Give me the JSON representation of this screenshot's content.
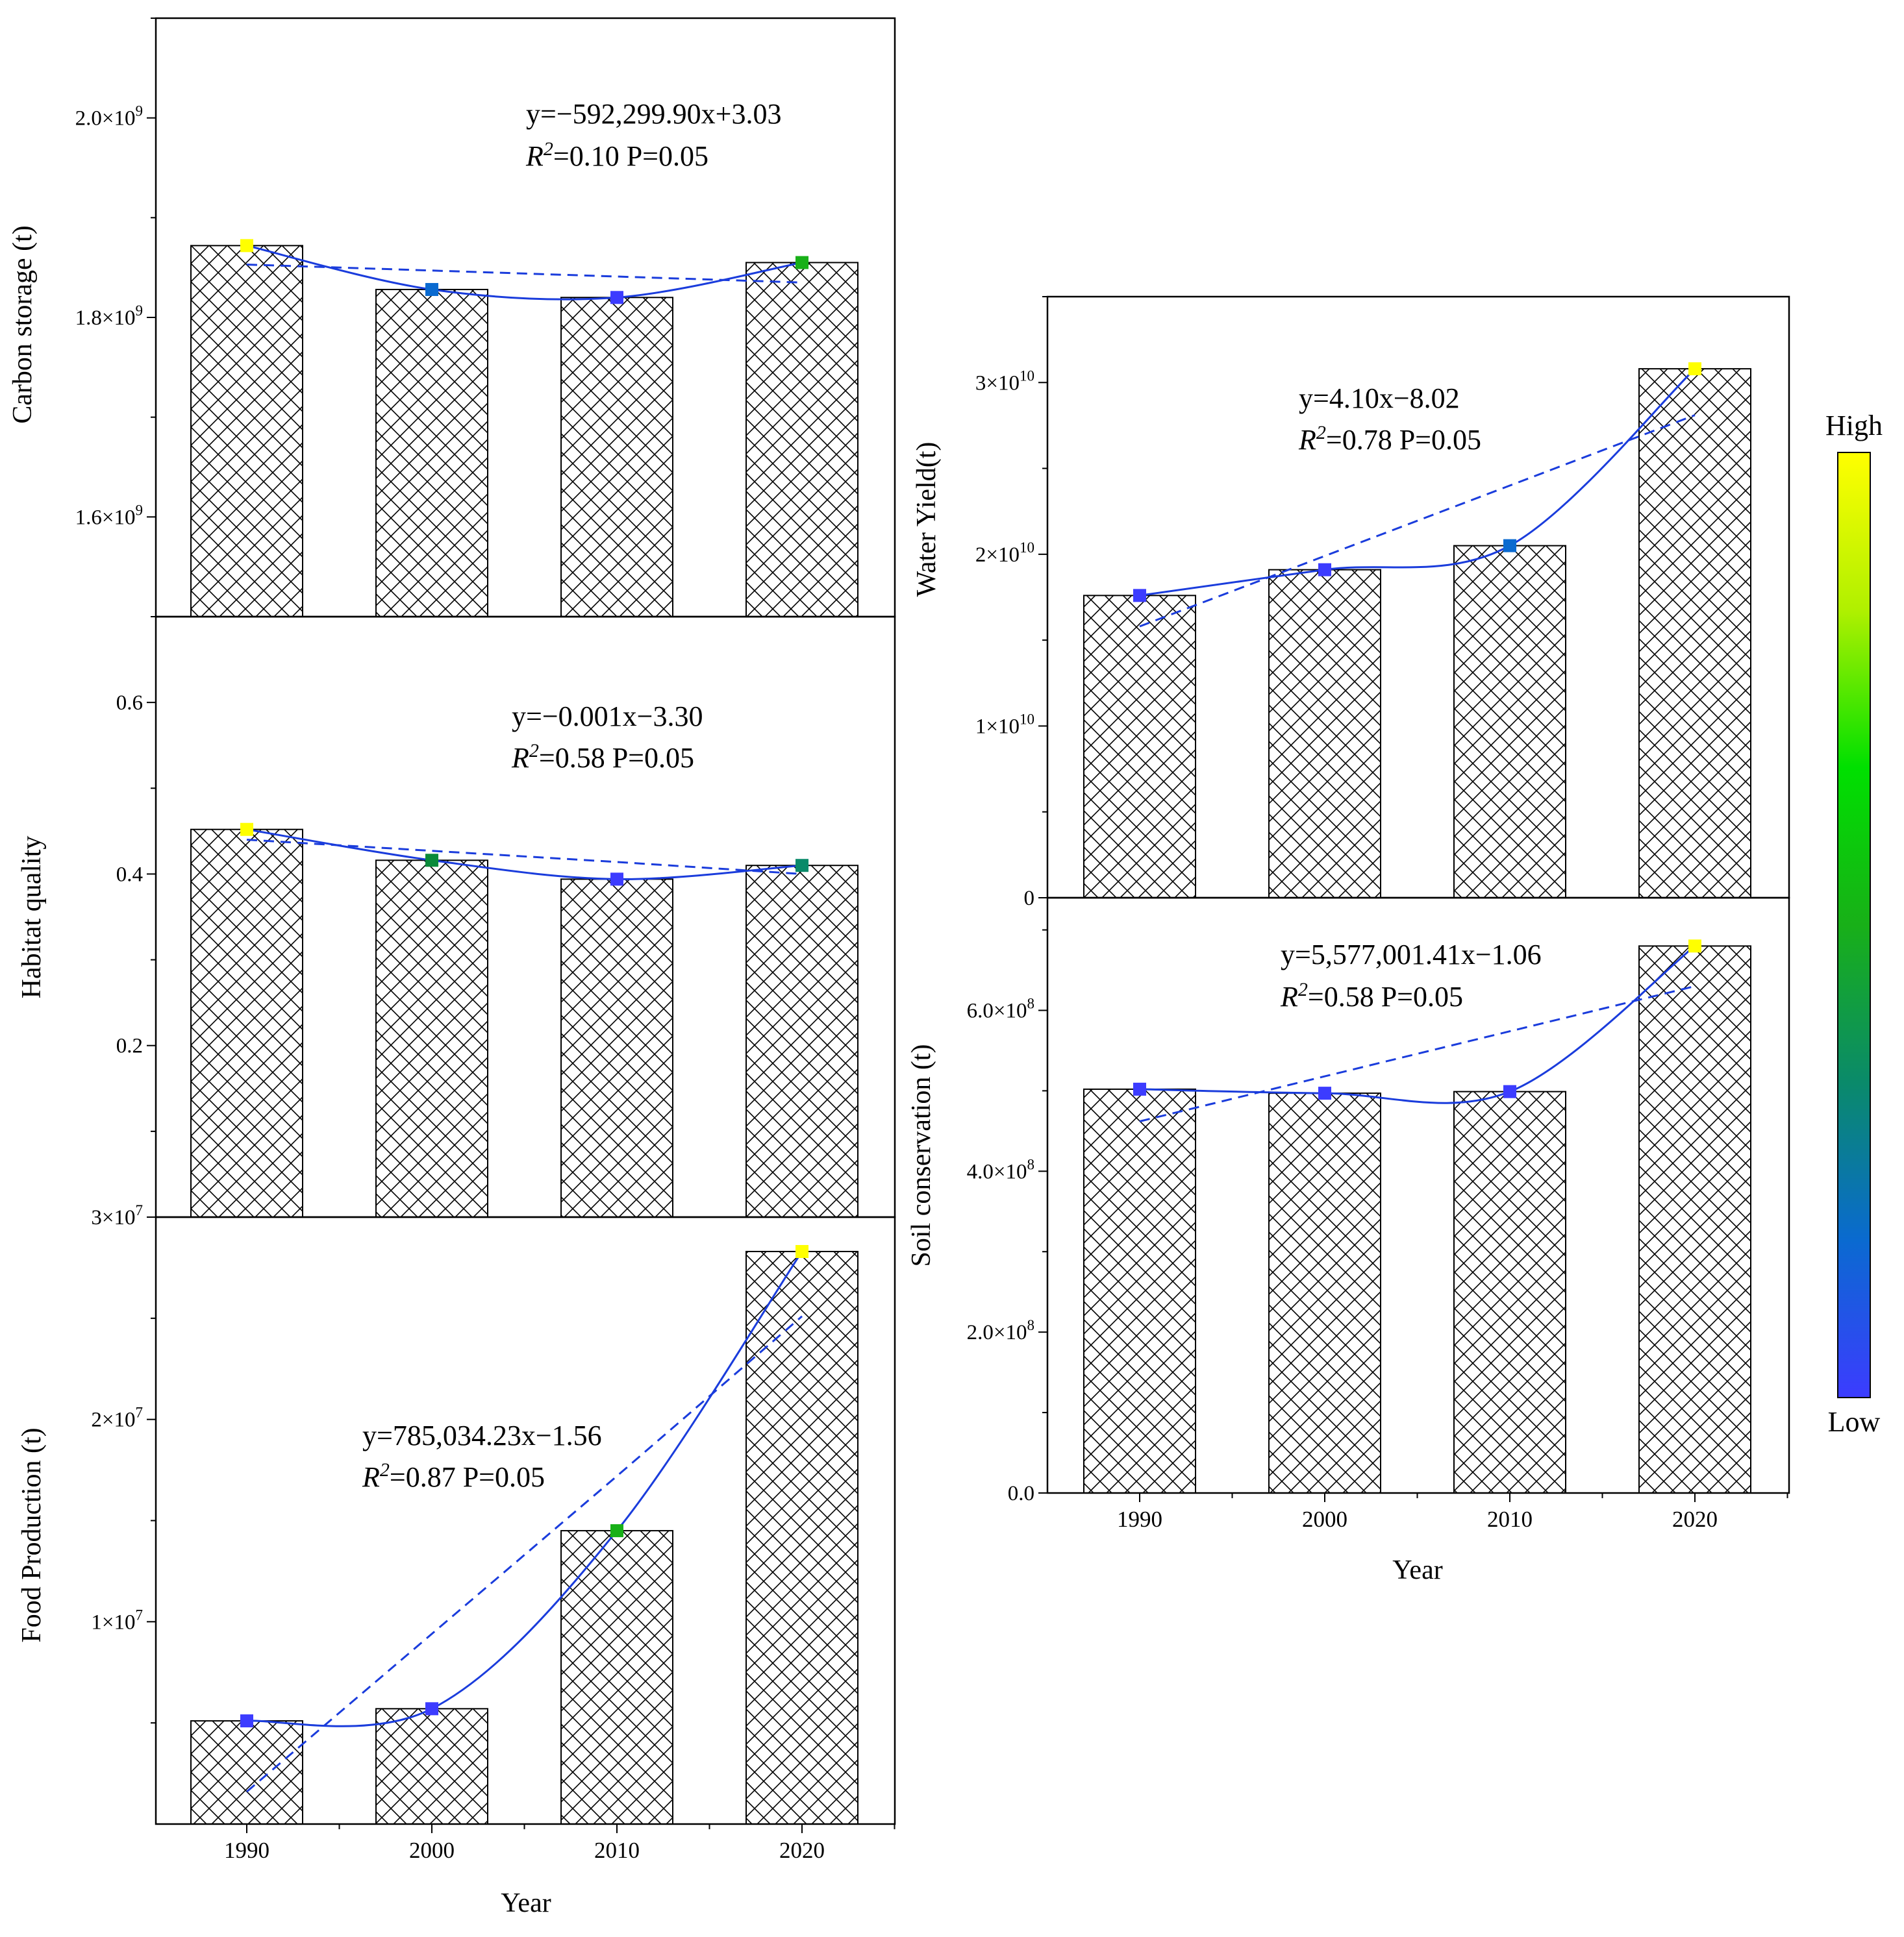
{
  "figure": {
    "colorbar": {
      "high_label": "High",
      "low_label": "Low",
      "stops": [
        "#3c3cff",
        "#0a6ad0",
        "#0a8a6a",
        "#18b018",
        "#00e000",
        "#b0f000",
        "#ffff00"
      ]
    },
    "trend_line_color": "#1a3cdc"
  },
  "chart_data": [
    {
      "id": "carbon",
      "type": "bar",
      "title": "",
      "xlabel": "",
      "ylabel": "Carbon storage (t)",
      "categories": [
        "1990",
        "2000",
        "2010",
        "2020"
      ],
      "values": [
        1872000000.0,
        1828000000.0,
        1820000000.0,
        1855000000.0
      ],
      "trend_values": [
        1853000000.0,
        1847000000.0,
        1841000000.0,
        1835000000.0
      ],
      "marker_colors": [
        "#ffff00",
        "#0a6ad0",
        "#3c3cff",
        "#18b018"
      ],
      "ylim": [
        1500000000.0,
        2100000000.0
      ],
      "yticks": [
        1600000000.0,
        1800000000.0,
        2000000000.0
      ],
      "ytick_labels": [
        {
          "mant": "1.6×10",
          "exp": "9"
        },
        {
          "mant": "1.8×10",
          "exp": "9"
        },
        {
          "mant": "2.0×10",
          "exp": "9"
        }
      ],
      "equation": "y=−592,299.90x+3.03",
      "r2_label": "R",
      "r2_sup": "2",
      "stats": "=0.10 P=0.05"
    },
    {
      "id": "habitat",
      "type": "bar",
      "title": "",
      "xlabel": "",
      "ylabel": "Habitat quality",
      "categories": [
        "1990",
        "2000",
        "2010",
        "2020"
      ],
      "values": [
        0.452,
        0.416,
        0.394,
        0.41
      ],
      "trend_values": [
        0.44,
        0.427,
        0.414,
        0.4
      ],
      "marker_colors": [
        "#ffff00",
        "#0a8a3a",
        "#3c3cff",
        "#0a8a6a"
      ],
      "ylim": [
        0.0,
        0.7
      ],
      "yticks": [
        0.2,
        0.4,
        0.6
      ],
      "ytick_labels": [
        {
          "mant": "0.2",
          "exp": ""
        },
        {
          "mant": "0.4",
          "exp": ""
        },
        {
          "mant": "0.6",
          "exp": ""
        }
      ],
      "equation": "y=−0.001x−3.30",
      "r2_label": "R",
      "r2_sup": "2",
      "stats": "=0.58 P=0.05"
    },
    {
      "id": "food",
      "type": "bar",
      "title": "",
      "xlabel": "Year",
      "ylabel": "Food Production (t)",
      "categories": [
        "1990",
        "2000",
        "2010",
        "2020"
      ],
      "values": [
        5100000.0,
        5700000.0,
        14500000.0,
        28300000.0
      ],
      "trend_values": [
        1600000.0,
        9400000.0,
        17200000.0,
        25100000.0
      ],
      "marker_colors": [
        "#3c3cff",
        "#3c3cff",
        "#18b018",
        "#ffff00"
      ],
      "ylim": [
        0,
        30000000.0
      ],
      "yticks": [
        10000000.0,
        20000000.0,
        30000000.0
      ],
      "ytick_labels": [
        {
          "mant": "1×10",
          "exp": "7"
        },
        {
          "mant": "2×10",
          "exp": "7"
        },
        {
          "mant": "3×10",
          "exp": "7"
        }
      ],
      "equation": "y=785,034.23x−1.56",
      "r2_label": "R",
      "r2_sup": "2",
      "stats": "=0.87 P=0.05"
    },
    {
      "id": "water",
      "type": "bar",
      "title": "",
      "xlabel": "",
      "ylabel": "Water Yield(t)",
      "categories": [
        "1990",
        "2000",
        "2010",
        "2020"
      ],
      "values": [
        17600000000.0,
        19100000000.0,
        20500000000.0,
        30800000000.0
      ],
      "trend_values": [
        15800000000.0,
        19900000000.0,
        24000000000.0,
        28100000000.0
      ],
      "marker_colors": [
        "#3c3cff",
        "#3c3cff",
        "#0a6ad0",
        "#ffff00"
      ],
      "ylim": [
        0,
        35000000000.0
      ],
      "yticks": [
        0,
        10000000000.0,
        20000000000.0,
        30000000000.0
      ],
      "ytick_labels": [
        {
          "mant": "0",
          "exp": ""
        },
        {
          "mant": "1×10",
          "exp": "10"
        },
        {
          "mant": "2×10",
          "exp": "10"
        },
        {
          "mant": "3×10",
          "exp": "10"
        }
      ],
      "equation": "y=4.10x−8.02",
      "r2_label": "R",
      "r2_sup": "2",
      "stats": "=0.78 P=0.05"
    },
    {
      "id": "soil",
      "type": "bar",
      "title": "",
      "xlabel": "Year",
      "ylabel": "Soil conservation (t)",
      "categories": [
        "1990",
        "2000",
        "2010",
        "2020"
      ],
      "values": [
        502000000.0,
        497000000.0,
        499000000.0,
        680000000.0
      ],
      "trend_values": [
        462000000.0,
        518000000.0,
        574000000.0,
        630000000.0
      ],
      "marker_colors": [
        "#3c3cff",
        "#3c3cff",
        "#3c3cff",
        "#ffff00"
      ],
      "ylim": [
        0,
        740000000.0
      ],
      "yticks": [
        0,
        200000000.0,
        400000000.0,
        600000000.0
      ],
      "ytick_labels": [
        {
          "mant": "0.0",
          "exp": ""
        },
        {
          "mant": "2.0×10",
          "exp": "8"
        },
        {
          "mant": "4.0×10",
          "exp": "8"
        },
        {
          "mant": "6.0×10",
          "exp": "8"
        }
      ],
      "equation": "y=5,577,001.41x−1.06",
      "r2_label": "R",
      "r2_sup": "2",
      "stats": "=0.58 P=0.05"
    }
  ]
}
